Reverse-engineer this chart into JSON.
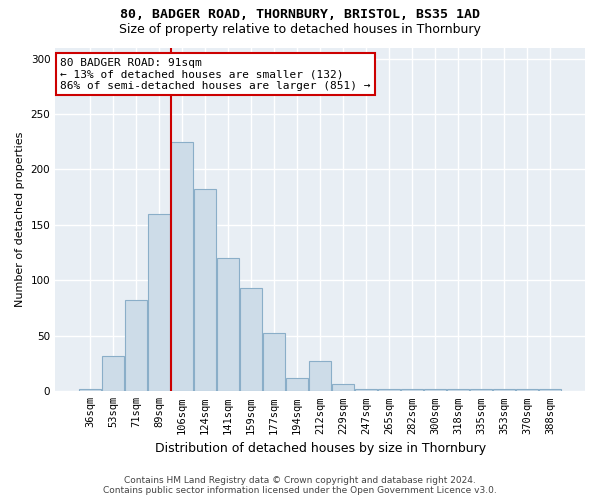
{
  "title1": "80, BADGER ROAD, THORNBURY, BRISTOL, BS35 1AD",
  "title2": "Size of property relative to detached houses in Thornbury",
  "xlabel": "Distribution of detached houses by size in Thornbury",
  "ylabel": "Number of detached properties",
  "bins": [
    "36sqm",
    "53sqm",
    "71sqm",
    "89sqm",
    "106sqm",
    "124sqm",
    "141sqm",
    "159sqm",
    "177sqm",
    "194sqm",
    "212sqm",
    "229sqm",
    "247sqm",
    "265sqm",
    "282sqm",
    "300sqm",
    "318sqm",
    "335sqm",
    "353sqm",
    "370sqm",
    "388sqm"
  ],
  "values": [
    2,
    32,
    82,
    160,
    225,
    182,
    120,
    93,
    53,
    12,
    27,
    7,
    2,
    2,
    2,
    2,
    2,
    2,
    2,
    2,
    2
  ],
  "bar_color": "#cddce8",
  "bar_edge_color": "#8aaec8",
  "vline_x_index": 3.5,
  "vline_color": "#cc0000",
  "annotation_text": "80 BADGER ROAD: 91sqm\n← 13% of detached houses are smaller (132)\n86% of semi-detached houses are larger (851) →",
  "annotation_box_facecolor": "white",
  "annotation_box_edgecolor": "#cc0000",
  "ylim": [
    0,
    310
  ],
  "yticks": [
    0,
    50,
    100,
    150,
    200,
    250,
    300
  ],
  "footer1": "Contains HM Land Registry data © Crown copyright and database right 2024.",
  "footer2": "Contains public sector information licensed under the Open Government Licence v3.0.",
  "bg_color": "#ffffff",
  "plot_bg_color": "#e8eef4",
  "grid_color": "#ffffff",
  "title1_fontsize": 9.5,
  "title2_fontsize": 9,
  "ylabel_fontsize": 8,
  "xlabel_fontsize": 9,
  "tick_fontsize": 7.5,
  "footer_fontsize": 6.5
}
